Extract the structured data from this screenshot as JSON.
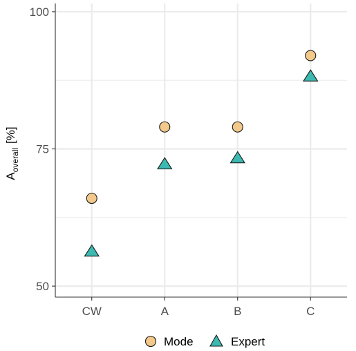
{
  "chart_data": {
    "type": "scatter",
    "categories": [
      "CW",
      "A",
      "B",
      "C"
    ],
    "series": [
      {
        "name": "Mode",
        "shape": "circle",
        "color": "#F2C98A",
        "values": [
          66,
          79,
          79,
          92
        ]
      },
      {
        "name": "Expert",
        "shape": "triangle",
        "color": "#3CB9B0",
        "values": [
          56.3,
          72.2,
          73.3,
          88.2
        ]
      }
    ],
    "title": "",
    "xlabel": "",
    "ylabel": {
      "base": "A",
      "subscript": "overall",
      "unit": "[%]"
    },
    "yticks": [
      50,
      75,
      100
    ],
    "yticks_labels": [
      "50",
      "75",
      "100"
    ],
    "ylim": [
      48,
      101.5
    ],
    "grid": true,
    "legend_position": "bottom",
    "colors": {
      "gridline": "#ebebeb",
      "axis": "#333333",
      "tick_text": "#4d4d4d",
      "marker_stroke": "#1a1a1a"
    }
  }
}
